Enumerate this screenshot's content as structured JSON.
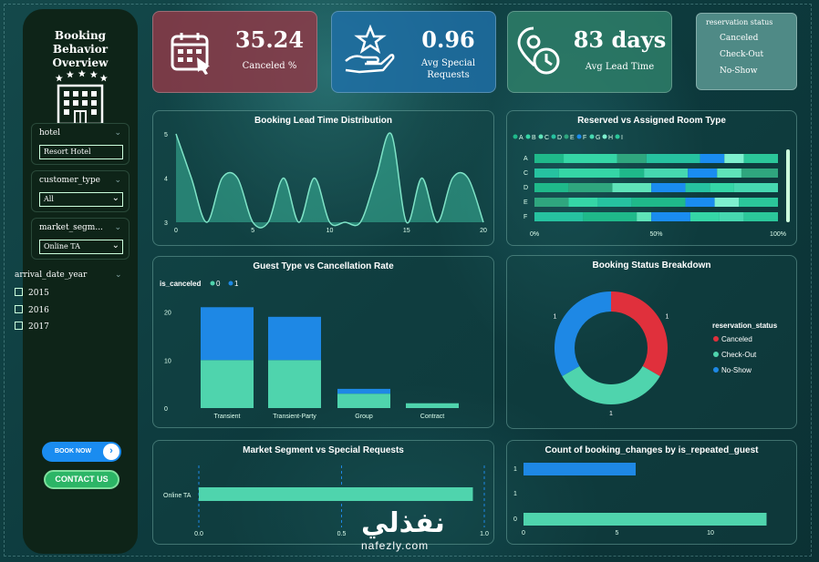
{
  "sidebar": {
    "title": "Booking Behavior Overview",
    "slicers": [
      {
        "label": "hotel",
        "value": "Resort Hotel"
      },
      {
        "label": "customer_type",
        "value": "All"
      },
      {
        "label": "market_segm...",
        "value": "Online TA"
      }
    ],
    "year_label": "arrival_date_year",
    "years": [
      "2015",
      "2016",
      "2017"
    ],
    "book_button": "BOOK NOW",
    "contact_button": "CONTACT US"
  },
  "kpis": [
    {
      "value": "35.24",
      "label": "Canceled %",
      "color": "#8c3a48",
      "icon": "calendar-icon"
    },
    {
      "value": "0.96",
      "label": "Avg Special Requests",
      "color": "#1f6ea5",
      "icon": "star-hand-icon"
    },
    {
      "value": "83 days",
      "label": "Avg Lead Time",
      "color": "#2e7e68",
      "icon": "location-clock-icon"
    }
  ],
  "status_legend": {
    "title": "reservation status",
    "items": [
      "Canceled",
      "Check-Out",
      "No-Show"
    ]
  },
  "panels": {
    "lead_time": "Booking Lead Time Distribution",
    "room_type": "Reserved vs Assigned Room Type",
    "guest_type": "Guest Type vs Cancellation Rate",
    "status_breakdown": "Booking Status Breakdown",
    "market_segment": "Market Segment vs Special Requests",
    "booking_changes": "Count of booking_changes by is_repeated_guest"
  },
  "watermark": {
    "arabic": "نفذلي",
    "latin": "nafezly.com"
  },
  "chart_data": [
    {
      "type": "area",
      "title": "Booking Lead Time Distribution",
      "x": [
        0,
        1,
        2,
        3,
        4,
        5,
        6,
        7,
        8,
        9,
        10,
        11,
        12,
        13,
        14,
        15,
        16,
        17,
        18,
        19,
        20
      ],
      "values": [
        5,
        4,
        3,
        4,
        4,
        3,
        3,
        4,
        3,
        4,
        3,
        3,
        3,
        4,
        5,
        3,
        4,
        3,
        4,
        4,
        3
      ],
      "xticks": [
        "0",
        "5",
        "10",
        "15",
        "20"
      ],
      "yticks": [
        "5",
        "4",
        "3"
      ],
      "ylim": [
        3,
        5
      ],
      "color": "#3ab79a"
    },
    {
      "type": "bar",
      "title": "Reserved vs Assigned Room Type",
      "legend": [
        "A",
        "B",
        "C",
        "D",
        "E",
        "F",
        "G",
        "H",
        "I"
      ],
      "categories": [
        "A",
        "C",
        "D",
        "E",
        "F"
      ],
      "xticks": [
        "0%",
        "50%",
        "100%"
      ],
      "colors": [
        "#1fb98a",
        "#35d6a6",
        "#5fe3b9",
        "#26c2a0",
        "#2fa67e",
        "#1a8cf0",
        "#46d8b0",
        "#7ef0cf",
        "#2bc79a"
      ]
    },
    {
      "type": "bar",
      "title": "Guest Type vs Cancellation Rate",
      "legend_title": "is_canceled",
      "legend": [
        "0",
        "1"
      ],
      "categories": [
        "Transient",
        "Transient-Party",
        "Group",
        "Contract"
      ],
      "series": [
        {
          "name": "0",
          "values": [
            10,
            10,
            3,
            1
          ],
          "color": "#4fd4ad"
        },
        {
          "name": "1",
          "values": [
            11,
            9,
            1,
            0
          ],
          "color": "#1e88e5"
        }
      ],
      "yticks": [
        "20",
        "10",
        "0"
      ],
      "ylim": [
        0,
        22
      ]
    },
    {
      "type": "pie",
      "title": "Booking Status Breakdown",
      "legend_title": "reservation_status",
      "labels": [
        "Canceled",
        "Check-Out",
        "No-Show"
      ],
      "values": [
        1,
        1,
        1
      ],
      "colors": [
        "#e0303c",
        "#4fd4ad",
        "#1e88e5"
      ]
    },
    {
      "type": "bar",
      "title": "Market Segment vs Special Requests",
      "categories": [
        "Online TA"
      ],
      "values": [
        0.96
      ],
      "xticks": [
        "0.0",
        "0.5",
        "1.0"
      ],
      "xlim": [
        0,
        1
      ],
      "color": "#4fd4ad"
    },
    {
      "type": "bar",
      "title": "Count of booking_changes by is_repeated_guest",
      "categories": [
        "1",
        "1",
        "0"
      ],
      "values": [
        6,
        0,
        13
      ],
      "colors": [
        "#1e88e5",
        "#1e88e5",
        "#4fd4ad"
      ],
      "xticks": [
        "0",
        "5",
        "10"
      ],
      "xlim": [
        0,
        14
      ]
    }
  ]
}
